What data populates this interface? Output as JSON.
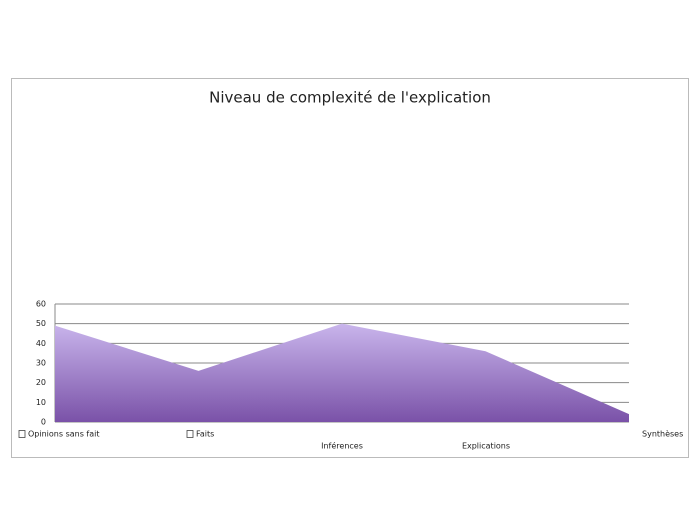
{
  "chart_data": {
    "type": "area",
    "title": "Niveau de complexité de l'explication",
    "categories": [
      "Opinions sans fait",
      "Faits",
      "Inférences",
      "Explications",
      "Synthèses"
    ],
    "values": [
      49,
      26,
      50,
      36,
      4
    ],
    "colors": [
      "#c9b5ec",
      "#7a52a8"
    ],
    "ylim": [
      0,
      60
    ],
    "yticks": [
      0,
      10,
      20,
      30,
      40,
      50,
      60
    ],
    "grid": true
  }
}
